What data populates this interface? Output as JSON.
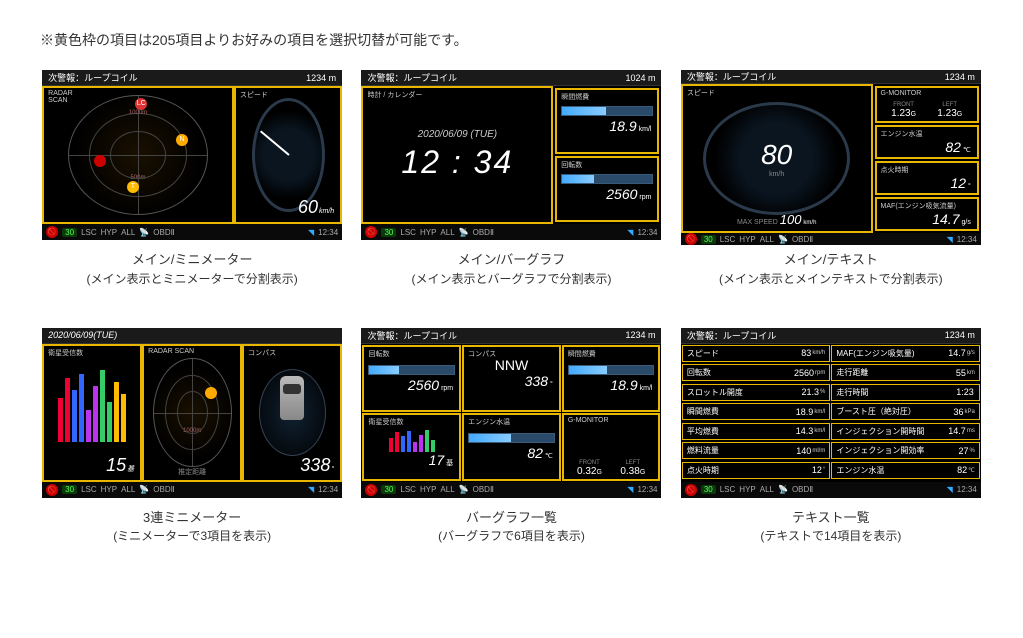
{
  "note": "※黄色枠の項目は205項目よりお好みの項目を選択切替が可能です。",
  "colors": {
    "accent": "#e8b800",
    "bg": "#000000"
  },
  "status": {
    "no_parking": "P",
    "limit": "30",
    "lsc": "LSC",
    "hyp": "HYP",
    "all": "ALL",
    "gps": "GPS",
    "obd": "OBDⅡ",
    "time": "12:34"
  },
  "warn": {
    "label": "次警報：ループコイル",
    "dist1": "1234 m",
    "dist2": "1024 m",
    "dist3": "1234 m"
  },
  "p1": {
    "title": "メイン/ミニメーター",
    "sub": "(メイン表示とミニメーターで分割表示)",
    "radar_label": "RADAR\nSCAN",
    "speed_label": "スピード",
    "speed_val": "60",
    "speed_unit": "km/h",
    "radar_rings": [
      "1000m",
      "500m"
    ]
  },
  "p2": {
    "title": "メイン/バーグラフ",
    "sub": "(メイン表示とバーグラフで分割表示)",
    "clock_label": "時計 / カレンダー",
    "date": "2020/06/09 (TUE)",
    "time": "12 : 34",
    "fuel_label": "瞬間燃費",
    "fuel_val": "18.9",
    "fuel_unit": "km/l",
    "rpm_label": "回転数",
    "rpm_val": "2560",
    "rpm_unit": "rpm"
  },
  "p3": {
    "title": "メイン/テキスト",
    "sub": "(メイン表示とメインテキストで分割表示)",
    "speed_label": "スピード",
    "speed_val": "80",
    "speed_unit": "km/h",
    "max_label": "MAX SPEED",
    "max_val": "100",
    "max_unit": "km/h",
    "rows": [
      {
        "label": "G-MONITOR",
        "left_l": "FRONT",
        "left_v": "1.23",
        "left_u": "G",
        "right_l": "LEFT",
        "right_v": "1.23",
        "right_u": "G"
      },
      {
        "label": "エンジン水温",
        "v": "82",
        "u": "℃"
      },
      {
        "label": "点火時期",
        "v": "12",
        "u": "°"
      },
      {
        "label": "MAF(エンジン吸気流量)",
        "v": "14.7",
        "u": "g/s"
      }
    ]
  },
  "p4": {
    "title": "3連ミニメーター",
    "sub": "(ミニメーターで3項目を表示)",
    "topbar": "2020/06/09(TUE)",
    "sat_label": "衛星受信数",
    "sat_val": "15",
    "sat_unit": "基",
    "radar_label": "RADAR SCAN",
    "radar_sub": "推定距離",
    "radar_ring": "1000m",
    "compass_label": "コンパス",
    "compass_val": "338",
    "compass_unit": "°",
    "bars": [
      {
        "h": 55,
        "c": "#e03"
      },
      {
        "h": 80,
        "c": "#e03"
      },
      {
        "h": 65,
        "c": "#36f"
      },
      {
        "h": 85,
        "c": "#36f"
      },
      {
        "h": 40,
        "c": "#b3e"
      },
      {
        "h": 70,
        "c": "#b3e"
      },
      {
        "h": 90,
        "c": "#3c6"
      },
      {
        "h": 50,
        "c": "#3c6"
      },
      {
        "h": 75,
        "c": "#fb0"
      },
      {
        "h": 60,
        "c": "#fb0"
      }
    ]
  },
  "p5": {
    "title": "バーグラフ一覧",
    "sub": "(バーグラフで6項目を表示)",
    "cells": [
      {
        "label": "回転数",
        "v": "2560",
        "u": "rpm",
        "fill": 35
      },
      {
        "label": "コンパス",
        "v": "NNW",
        "v2": "338",
        "u": "°",
        "fill": 60,
        "dir": true
      },
      {
        "label": "瞬間燃費",
        "v": "18.9",
        "u": "km/l",
        "fill": 45
      },
      {
        "label": "衛星受信数",
        "v": "17",
        "u": "基",
        "fill": 0,
        "bars": true
      },
      {
        "label": "エンジン水温",
        "v": "82",
        "u": "℃",
        "fill": 50
      },
      {
        "label": "G-MONITOR",
        "gl": "FRONT",
        "gv": "0.32",
        "gl2": "LEFT",
        "gv2": "0.38",
        "gu": "G"
      }
    ]
  },
  "p6": {
    "title": "テキスト一覧",
    "sub": "(テキストで14項目を表示)",
    "rows": [
      {
        "l": "スピード",
        "v": "83",
        "u": "km/h"
      },
      {
        "l": "MAF(エンジン吸気量)",
        "v": "14.7",
        "u": "g/s"
      },
      {
        "l": "回転数",
        "v": "2560",
        "u": "rpm"
      },
      {
        "l": "走行距離",
        "v": "55",
        "u": "km"
      },
      {
        "l": "スロットル開度",
        "v": "21.3",
        "u": "%"
      },
      {
        "l": "走行時間",
        "v": "1:23",
        "u": ""
      },
      {
        "l": "瞬間燃費",
        "v": "18.9",
        "u": "km/l"
      },
      {
        "l": "ブースト圧（絶対圧）",
        "v": "36",
        "u": "kPa"
      },
      {
        "l": "平均燃費",
        "v": "14.3",
        "u": "km/l"
      },
      {
        "l": "インジェクション開時間",
        "v": "14.7",
        "u": "ms"
      },
      {
        "l": "燃料流量",
        "v": "140",
        "u": "ml/m"
      },
      {
        "l": "インジェクション開効率",
        "v": "27",
        "u": "%"
      },
      {
        "l": "点火時期",
        "v": "12",
        "u": "°"
      },
      {
        "l": "エンジン水温",
        "v": "82",
        "u": "℃"
      }
    ]
  }
}
